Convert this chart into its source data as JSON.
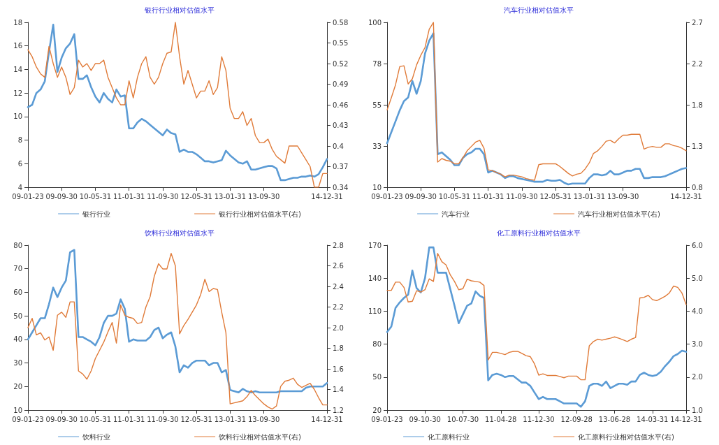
{
  "chart_data": [
    {
      "type": "line",
      "title": "银行行业相对估值水平",
      "legend": "bottom",
      "marker": "none",
      "line_style": "solid",
      "grid": false,
      "categories": [
        "09-01-23",
        null,
        null,
        null,
        null,
        null,
        null,
        null,
        "09-09-30",
        null,
        null,
        null,
        null,
        null,
        null,
        null,
        "10-05-31",
        null,
        null,
        null,
        null,
        null,
        null,
        null,
        "11-01-31",
        null,
        null,
        null,
        null,
        null,
        null,
        null,
        "11-09-30",
        null,
        null,
        null,
        null,
        null,
        null,
        null,
        "12-05-31",
        null,
        null,
        null,
        null,
        null,
        null,
        null,
        "13-01-31",
        null,
        null,
        null,
        null,
        null,
        null,
        null,
        "13-09-30",
        null,
        null,
        null,
        null,
        null,
        null,
        null,
        null,
        null,
        null,
        null,
        null,
        null,
        null,
        "14-12-31"
      ],
      "ylim": [
        4,
        18
      ],
      "yticks": [
        4,
        6,
        8,
        10,
        12,
        14,
        16,
        18
      ],
      "y2lim": [
        0.34,
        0.58
      ],
      "y2ticks": [
        0.34,
        0.37,
        0.4,
        0.43,
        0.46,
        0.49,
        0.52,
        0.55,
        0.58
      ],
      "series": [
        {
          "name": "银行行业",
          "color": "#5b9bd5",
          "values": [
            10.8,
            11.0,
            12.0,
            12.3,
            13.0,
            15.5,
            17.8,
            13.8,
            15.0,
            15.8,
            16.2,
            17.0,
            13.2,
            13.2,
            13.5,
            12.5,
            11.7,
            11.2,
            12.0,
            11.5,
            11.2,
            12.3,
            11.7,
            11.8,
            9.0,
            9.0,
            9.5,
            9.8,
            9.6,
            9.3,
            9.0,
            8.7,
            8.4,
            8.9,
            8.6,
            8.5,
            7.0,
            7.2,
            7.0,
            7.0,
            6.8,
            6.5,
            6.2,
            6.2,
            6.1,
            6.2,
            6.3,
            7.1,
            6.7,
            6.4,
            6.1,
            6.0,
            6.2,
            5.5,
            5.5,
            5.6,
            5.7,
            5.8,
            5.8,
            5.6,
            4.6,
            4.6,
            4.7,
            4.8,
            4.8,
            4.9,
            4.9,
            5.0,
            4.9,
            5.1,
            5.7,
            6.4
          ]
        },
        {
          "name": "银行行业相对估值水平(右)",
          "color": "#e07b39",
          "axis": "y2",
          "values": [
            0.54,
            0.53,
            0.515,
            0.505,
            0.5,
            0.545,
            0.52,
            0.5,
            0.515,
            0.5,
            0.475,
            0.485,
            0.525,
            0.515,
            0.52,
            0.51,
            0.52,
            0.52,
            0.525,
            0.5,
            0.485,
            0.47,
            0.46,
            0.46,
            0.495,
            0.47,
            0.5,
            0.52,
            0.53,
            0.5,
            0.49,
            0.5,
            0.52,
            0.535,
            0.537,
            0.58,
            0.53,
            0.49,
            0.51,
            0.49,
            0.47,
            0.48,
            0.48,
            0.495,
            0.475,
            0.485,
            0.53,
            0.51,
            0.455,
            0.44,
            0.44,
            0.45,
            0.43,
            0.44,
            0.415,
            0.405,
            0.405,
            0.41,
            0.395,
            0.385,
            0.38,
            0.375,
            0.4,
            0.4,
            0.4,
            0.39,
            0.38,
            0.37,
            0.34,
            0.34,
            0.36,
            0.36
          ]
        }
      ]
    },
    {
      "type": "line",
      "title": "汽车行业相对估值水平",
      "legend": "bottom",
      "marker": "none",
      "line_style": "solid",
      "grid": false,
      "categories": [
        "09-01-23",
        null,
        null,
        null,
        null,
        null,
        null,
        null,
        "09-09-30",
        null,
        null,
        null,
        null,
        null,
        null,
        null,
        "10-05-31",
        null,
        null,
        null,
        null,
        null,
        null,
        null,
        "11-01-31",
        null,
        null,
        null,
        null,
        null,
        null,
        null,
        "11-09-30",
        null,
        null,
        null,
        null,
        null,
        null,
        null,
        "12-05-31",
        null,
        null,
        null,
        null,
        null,
        null,
        null,
        "13-01-31",
        null,
        null,
        null,
        null,
        null,
        null,
        null,
        "13-09-30",
        null,
        null,
        null,
        null,
        null,
        null,
        null,
        null,
        null,
        null,
        null,
        null,
        null,
        null,
        "14-12-31"
      ],
      "ylim": [
        10,
        100
      ],
      "yticks": [
        10,
        {
          "value": 32.5,
          "label": "33"
        },
        55,
        {
          "value": 77.5,
          "label": "78"
        },
        100
      ],
      "y2lim": [
        0.8,
        2.7
      ],
      "y2ticks": [
        0.8,
        {
          "value": 1.275,
          "label": "1.3"
        },
        {
          "value": 1.75,
          "label": "1.8"
        },
        {
          "value": 2.225,
          "label": "2.2"
        },
        2.7
      ],
      "series": [
        {
          "name": "汽车行业",
          "color": "#5b9bd5",
          "values": [
            34,
            40,
            46,
            52,
            57,
            59,
            68,
            61,
            68,
            83,
            90,
            94,
            28,
            29,
            27,
            25,
            22,
            22,
            26,
            28,
            29,
            31,
            31,
            28,
            18,
            19,
            18,
            17,
            15,
            16,
            16,
            15,
            14.5,
            14,
            13.5,
            13,
            13,
            13,
            14,
            13.5,
            13.5,
            14,
            12.5,
            11.5,
            12,
            12,
            12,
            12,
            15,
            17,
            17,
            16.5,
            17,
            19,
            17,
            17,
            18,
            19,
            19,
            20,
            20,
            15,
            15,
            15.5,
            15.5,
            15.5,
            16,
            17,
            18,
            19,
            20,
            20.5
          ]
        },
        {
          "name": "汽车行业相对估值水平(右)",
          "color": "#e07b39",
          "axis": "y2",
          "values": [
            1.69,
            1.83,
            1.98,
            2.19,
            2.2,
            1.99,
            2.05,
            2.21,
            2.32,
            2.41,
            2.62,
            2.7,
            1.09,
            1.13,
            1.11,
            1.1,
            1.07,
            1.07,
            1.14,
            1.22,
            1.27,
            1.32,
            1.34,
            1.25,
            1.0,
            0.99,
            0.97,
            0.95,
            0.92,
            0.94,
            0.94,
            0.93,
            0.92,
            0.9,
            0.89,
            0.88,
            1.06,
            1.07,
            1.07,
            1.07,
            1.07,
            1.04,
            1.0,
            0.96,
            0.93,
            0.95,
            0.96,
            1.01,
            1.08,
            1.19,
            1.22,
            1.27,
            1.33,
            1.34,
            1.31,
            1.36,
            1.4,
            1.4,
            1.41,
            1.41,
            1.41,
            1.24,
            1.26,
            1.27,
            1.26,
            1.26,
            1.3,
            1.3,
            1.28,
            1.27,
            1.25,
            1.22
          ]
        }
      ]
    },
    {
      "type": "line",
      "title": "饮料行业相对估值水平",
      "legend": "bottom",
      "marker": "none",
      "line_style": "solid",
      "grid": false,
      "categories": [
        "09-01-23",
        null,
        null,
        null,
        null,
        null,
        null,
        null,
        "09-09-30",
        null,
        null,
        null,
        null,
        null,
        null,
        null,
        "10-05-31",
        null,
        null,
        null,
        null,
        null,
        null,
        null,
        "11-01-31",
        null,
        null,
        null,
        null,
        null,
        null,
        null,
        "11-09-30",
        null,
        null,
        null,
        null,
        null,
        null,
        null,
        "12-05-31",
        null,
        null,
        null,
        null,
        null,
        null,
        null,
        "13-01-31",
        null,
        null,
        null,
        null,
        null,
        null,
        null,
        "13-09-30",
        null,
        null,
        null,
        null,
        null,
        null,
        null,
        null,
        null,
        null,
        null,
        null,
        null,
        null,
        "14-12-31"
      ],
      "ylim": [
        10,
        80
      ],
      "yticks": [
        10,
        20,
        30,
        40,
        50,
        60,
        70,
        80
      ],
      "y2lim": [
        1.2,
        2.8
      ],
      "y2ticks": [
        1.2,
        1.4,
        1.6,
        1.8,
        {
          "value": 2,
          "label": "2.0"
        },
        2.2,
        2.4,
        2.6,
        2.8
      ],
      "series": [
        {
          "name": "饮料行业",
          "color": "#5b9bd5",
          "values": [
            40,
            43,
            46,
            49,
            49,
            55,
            62,
            58,
            62,
            65,
            77,
            78,
            41,
            41,
            40,
            39,
            37.5,
            41,
            47,
            50,
            50,
            51,
            57,
            53,
            39,
            40,
            39.5,
            39.5,
            39.5,
            41,
            44,
            45,
            40.5,
            42,
            43,
            37,
            26,
            29,
            28,
            30,
            31,
            31,
            31,
            29,
            30,
            30,
            26,
            27,
            18.5,
            18,
            17.5,
            19,
            18,
            17.5,
            18,
            17.5,
            17.5,
            17.5,
            17.5,
            17.5,
            18,
            18,
            18,
            18,
            18,
            18,
            19.5,
            20,
            20,
            20,
            20,
            21.5
          ]
        },
        {
          "name": "饮料行业相对估值水平(右)",
          "color": "#e07b39",
          "axis": "y2",
          "values": [
            2.0,
            2.09,
            1.93,
            1.95,
            1.88,
            1.91,
            1.78,
            2.12,
            2.15,
            2.1,
            2.25,
            2.25,
            1.58,
            1.55,
            1.5,
            1.58,
            1.7,
            1.78,
            1.86,
            1.96,
            2.05,
            1.85,
            2.22,
            2.12,
            2.1,
            2.09,
            2.04,
            2.05,
            2.2,
            2.3,
            2.5,
            2.62,
            2.57,
            2.57,
            2.72,
            2.6,
            1.94,
            2.02,
            2.08,
            2.15,
            2.22,
            2.32,
            2.47,
            2.35,
            2.38,
            2.37,
            2.15,
            1.95,
            1.26,
            1.27,
            1.28,
            1.29,
            1.33,
            1.39,
            1.34,
            1.3,
            1.26,
            1.23,
            1.21,
            1.24,
            1.43,
            1.48,
            1.49,
            1.51,
            1.45,
            1.42,
            1.44,
            1.46,
            1.4,
            1.32,
            1.25,
            1.25
          ]
        }
      ]
    },
    {
      "type": "line",
      "title": "化工原料行业相对估值水平",
      "legend": "bottom",
      "marker": "none",
      "line_style": "solid",
      "grid": false,
      "categories": [
        "09-01-23",
        null,
        null,
        null,
        null,
        null,
        null,
        null,
        null,
        "09-10-30",
        null,
        null,
        null,
        null,
        null,
        null,
        null,
        null,
        "10-07-30",
        null,
        null,
        null,
        null,
        null,
        null,
        null,
        null,
        "11-04-28",
        null,
        null,
        null,
        null,
        null,
        null,
        null,
        null,
        "11-12-30",
        null,
        null,
        null,
        null,
        null,
        null,
        null,
        null,
        "12-09-28",
        null,
        null,
        null,
        null,
        null,
        null,
        null,
        null,
        "13-06-28",
        null,
        null,
        null,
        null,
        null,
        null,
        null,
        null,
        "14-03-31",
        null,
        null,
        null,
        null,
        null,
        null,
        null,
        "14-12-31"
      ],
      "ylim": [
        20,
        170
      ],
      "yticks": [
        20,
        50,
        80,
        110,
        140,
        170
      ],
      "y2lim": [
        1,
        6
      ],
      "y2ticks": [
        {
          "value": 1,
          "label": "1.0"
        },
        {
          "value": 2,
          "label": "2.0"
        },
        {
          "value": 3,
          "label": "3.0"
        },
        {
          "value": 4,
          "label": "4.0"
        },
        {
          "value": 5,
          "label": "5.0"
        },
        {
          "value": 6,
          "label": "6.0"
        }
      ],
      "series": [
        {
          "name": "化工原料行业",
          "color": "#5b9bd5",
          "values": [
            91,
            96,
            113,
            118,
            122,
            125,
            147,
            131,
            127,
            140,
            168,
            168,
            145,
            145,
            145,
            130,
            115,
            99,
            107,
            115,
            117,
            128,
            124,
            122,
            47,
            52,
            53,
            52,
            50,
            51,
            51,
            48,
            45,
            45,
            42,
            36,
            30,
            32,
            30,
            30,
            30,
            28,
            26,
            26,
            26,
            26,
            23,
            28,
            42,
            44,
            44,
            42,
            46,
            40,
            42,
            44,
            44,
            43,
            46,
            46,
            52,
            54,
            52,
            51,
            52,
            55,
            60,
            64,
            69,
            71,
            74,
            73
          ]
        },
        {
          "name": "化工原料行业相对估值水平(右)",
          "color": "#e07b39",
          "axis": "y2",
          "values": [
            4.63,
            4.63,
            4.88,
            4.88,
            4.72,
            4.28,
            4.3,
            4.62,
            4.58,
            4.65,
            4.98,
            4.9,
            5.75,
            5.5,
            5.4,
            5.1,
            4.9,
            4.65,
            4.68,
            4.97,
            4.92,
            4.9,
            4.88,
            4.78,
            2.52,
            2.75,
            2.75,
            2.72,
            2.68,
            2.75,
            2.78,
            2.78,
            2.72,
            2.65,
            2.62,
            2.4,
            2.06,
            2.1,
            2.05,
            2.05,
            2.05,
            2.02,
            1.98,
            2.03,
            2.03,
            2.03,
            1.92,
            1.92,
            2.95,
            3.08,
            3.15,
            3.12,
            3.15,
            3.18,
            3.22,
            3.18,
            3.13,
            3.08,
            3.15,
            3.2,
            4.4,
            4.42,
            4.48,
            4.35,
            4.32,
            4.38,
            4.45,
            4.55,
            4.76,
            4.72,
            4.55,
            4.2
          ]
        }
      ]
    }
  ]
}
